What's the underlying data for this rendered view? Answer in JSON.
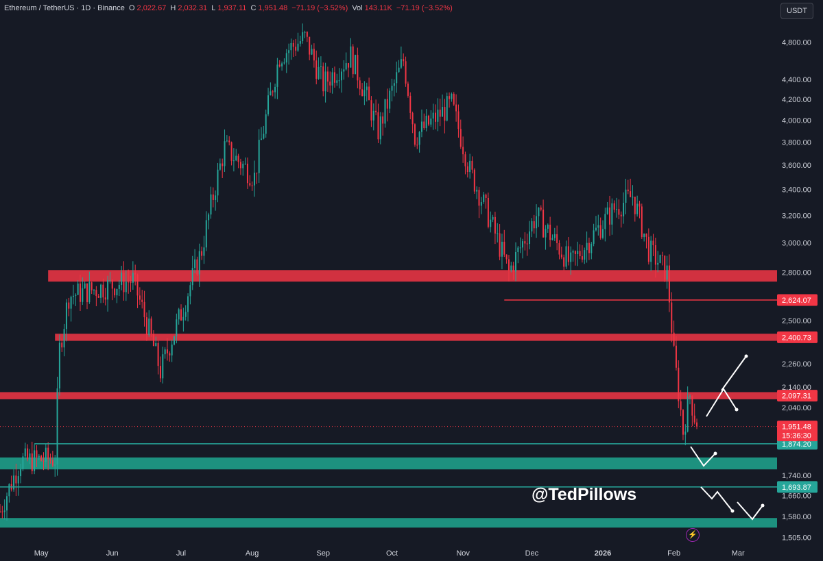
{
  "header": {
    "symbol": "Ethereum / TetherUS · 1D · Binance",
    "open_label": "O",
    "open": "2,022.67",
    "high_label": "H",
    "high": "2,032.31",
    "low_label": "L",
    "low": "1,937.11",
    "close_label": "C",
    "close": "1,951.48",
    "change": "−71.19 (−3.52%)",
    "vol_label": "Vol",
    "vol": "143.11K",
    "vol_change": "−71.19 (−3.52%)"
  },
  "currency_button": "USDT",
  "watermark": "@TedPillows",
  "colors": {
    "background": "#161a25",
    "up": "#26a69a",
    "down": "#f23645",
    "resistance": "#f23645",
    "support": "#1e9e8a",
    "grid_text": "#d1d4dc"
  },
  "chart_data": {
    "type": "candlestick",
    "title": "Ethereum / TetherUS · 1D · Binance",
    "y_scale": "log",
    "ylim": [
      1480,
      5050
    ],
    "y_ticks": [
      1505,
      1580,
      1660,
      1740,
      2040,
      2140,
      2260,
      2500,
      2800,
      3000,
      3200,
      3400,
      3600,
      3800,
      4000,
      4200,
      4400,
      4800
    ],
    "y_tick_labels": [
      "1,505.00",
      "1,580.00",
      "1,660.00",
      "1,740.00",
      "2,040.00",
      "2,140.00",
      "2,260.00",
      "2,500.00",
      "2,800.00",
      "3,000.00",
      "3,200.00",
      "3,400.00",
      "3,600.00",
      "3,800.00",
      "4,000.00",
      "4,200.00",
      "4,400.00",
      "4,800.00"
    ],
    "x_range": [
      "2025-04-13",
      "2026-03-18"
    ],
    "x_ticks": [
      {
        "date": "2025-05-01",
        "label": "May"
      },
      {
        "date": "2025-06-01",
        "label": "Jun"
      },
      {
        "date": "2025-07-01",
        "label": "Jul"
      },
      {
        "date": "2025-08-01",
        "label": "Aug"
      },
      {
        "date": "2025-09-01",
        "label": "Sep"
      },
      {
        "date": "2025-10-01",
        "label": "Oct"
      },
      {
        "date": "2025-11-01",
        "label": "Nov"
      },
      {
        "date": "2025-12-01",
        "label": "Dec"
      },
      {
        "date": "2026-01-01",
        "label": "2026"
      },
      {
        "date": "2026-02-01",
        "label": "Feb"
      },
      {
        "date": "2026-03-01",
        "label": "Mar"
      }
    ],
    "candle_anchors": [
      {
        "date": "2025-04-13",
        "close": 1600
      },
      {
        "date": "2025-04-22",
        "close": 1800
      },
      {
        "date": "2025-05-07",
        "close": 1810
      },
      {
        "date": "2025-05-09",
        "close": 2340
      },
      {
        "date": "2025-05-13",
        "close": 2650
      },
      {
        "date": "2025-06-10",
        "close": 2750
      },
      {
        "date": "2025-06-22",
        "close": 2220
      },
      {
        "date": "2025-07-02",
        "close": 2580
      },
      {
        "date": "2025-07-10",
        "close": 2950
      },
      {
        "date": "2025-07-20",
        "close": 3750
      },
      {
        "date": "2025-08-02",
        "close": 3500
      },
      {
        "date": "2025-08-13",
        "close": 4650
      },
      {
        "date": "2025-08-24",
        "close": 4850
      },
      {
        "date": "2025-09-01",
        "close": 4350
      },
      {
        "date": "2025-09-13",
        "close": 4650
      },
      {
        "date": "2025-09-25",
        "close": 3900
      },
      {
        "date": "2025-10-06",
        "close": 4600
      },
      {
        "date": "2025-10-11",
        "close": 3850
      },
      {
        "date": "2025-10-27",
        "close": 4150
      },
      {
        "date": "2025-11-04",
        "close": 3550
      },
      {
        "date": "2025-11-21",
        "close": 2800
      },
      {
        "date": "2025-12-03",
        "close": 3200
      },
      {
        "date": "2025-12-18",
        "close": 2850
      },
      {
        "date": "2026-01-06",
        "close": 3250
      },
      {
        "date": "2026-01-14",
        "close": 3350
      },
      {
        "date": "2026-01-21",
        "close": 2950
      },
      {
        "date": "2026-01-29",
        "close": 2800
      },
      {
        "date": "2026-02-01",
        "close": 2300
      },
      {
        "date": "2026-02-05",
        "close": 1930
      },
      {
        "date": "2026-02-08",
        "close": 2100
      },
      {
        "date": "2026-02-11",
        "close": 1951.48
      }
    ],
    "resistance_zones": [
      {
        "from": 2740,
        "to": 2815,
        "start": "2025-05-04"
      },
      {
        "from": 2385,
        "to": 2425,
        "start": "2025-05-07",
        "label": "2,400.73"
      },
      {
        "from": 2080,
        "to": 2115,
        "start": "2025-04-13",
        "label": "2,097.31"
      }
    ],
    "support_zones": [
      {
        "from": 1765,
        "to": 1815,
        "start": "2025-04-13"
      },
      {
        "from": 1540,
        "to": 1575,
        "start": "2025-04-13"
      }
    ],
    "lines": [
      {
        "value": 2624.07,
        "start": "2025-11-19",
        "color": "down",
        "label": "2,624.07"
      },
      {
        "value": 1874.2,
        "start": "2025-04-28",
        "color": "up",
        "label": "1,874.20"
      },
      {
        "value": 1693.87,
        "start": "2025-04-13",
        "color": "up",
        "label": "1,693.87"
      }
    ],
    "last_price": {
      "value": 1951.48,
      "label": "1,951.48",
      "countdown": "15:36:30"
    }
  }
}
